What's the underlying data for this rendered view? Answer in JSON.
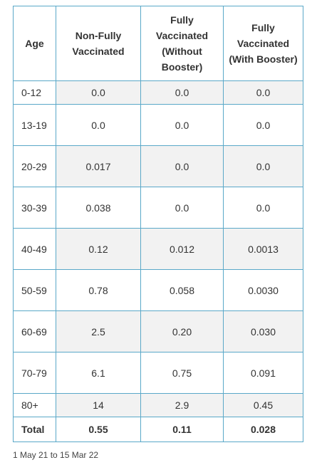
{
  "table": {
    "header": [
      "Age",
      "Non-Fully Vaccinated",
      "Fully Vaccinated (Without Booster)",
      "Fully Vaccinated (With Booster)"
    ],
    "rows": [
      [
        "0-12",
        "0.0",
        "0.0",
        "0.0"
      ],
      [
        "13-19",
        "0.0",
        "0.0",
        "0.0"
      ],
      [
        "20-29",
        "0.017",
        "0.0",
        "0.0"
      ],
      [
        "30-39",
        "0.038",
        "0.0",
        "0.0"
      ],
      [
        "40-49",
        "0.12",
        "0.012",
        "0.0013"
      ],
      [
        "50-59",
        "0.78",
        "0.058",
        "0.0030"
      ],
      [
        "60-69",
        "2.5",
        "0.20",
        "0.030"
      ],
      [
        "70-79",
        "6.1",
        "0.75",
        "0.091"
      ],
      [
        "80+",
        "14",
        "2.9",
        "0.45"
      ],
      [
        "Total",
        "0.55",
        "0.11",
        "0.028"
      ]
    ]
  },
  "footnote": "1 May 21 to 15 Mar 22"
}
